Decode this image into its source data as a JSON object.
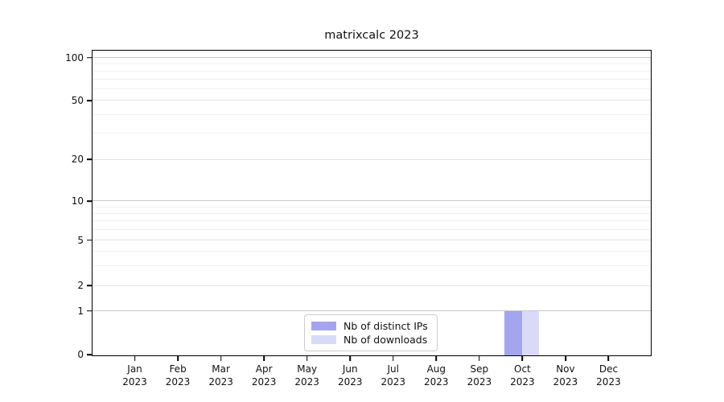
{
  "title": "matrixcalc 2023",
  "chart_data": {
    "type": "bar",
    "title": "matrixcalc 2023",
    "categories": [
      "Jan",
      "Feb",
      "Mar",
      "Apr",
      "May",
      "Jun",
      "Jul",
      "Aug",
      "Sep",
      "Oct",
      "Nov",
      "Dec"
    ],
    "category_year": "2023",
    "series": [
      {
        "name": "Nb of distinct IPs",
        "color": "#a5a5ef",
        "values": [
          0,
          0,
          0,
          0,
          0,
          0,
          0,
          0,
          0,
          1,
          0,
          0
        ]
      },
      {
        "name": "Nb of downloads",
        "color": "#dadaf8",
        "values": [
          0,
          0,
          0,
          0,
          0,
          0,
          0,
          0,
          0,
          1,
          0,
          0
        ]
      }
    ],
    "y_ticks": [
      0,
      1,
      2,
      5,
      10,
      20,
      50,
      100
    ],
    "y_minor_gridlines": [
      3,
      4,
      6,
      7,
      8,
      9,
      30,
      40,
      60,
      70,
      80,
      90
    ],
    "ylim": [
      0,
      100
    ],
    "scale": "symlog-like",
    "grid": true,
    "legend_position": "lower center",
    "xlabel": "",
    "ylabel": ""
  }
}
